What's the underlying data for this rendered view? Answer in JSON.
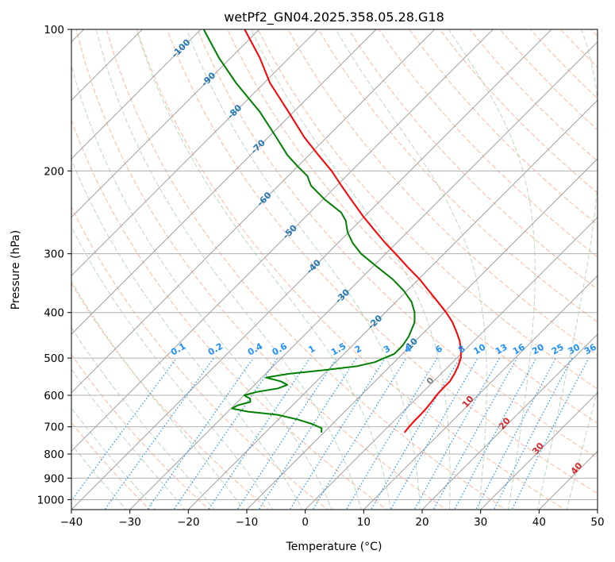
{
  "chart_data": {
    "type": "line",
    "diagram": "skew-T log-p",
    "title": "wetPf2_GN04.2025.358.05.28.G18",
    "xlabel": "Temperature (°C)",
    "ylabel": "Pressure (hPa)",
    "xlim": [
      -40,
      50
    ],
    "ylim": [
      1050,
      100
    ],
    "y_scale": "log",
    "grid": true,
    "x_ticks": [
      -40,
      -30,
      -20,
      -10,
      0,
      10,
      20,
      30,
      40,
      50
    ],
    "y_ticks": [
      100,
      200,
      300,
      400,
      500,
      600,
      700,
      800,
      900,
      1000
    ],
    "isotherm_labels": [
      "-100",
      "-90",
      "-80",
      "-70",
      "-60",
      "-50",
      "-40",
      "-30",
      "-20",
      "-10"
    ],
    "mixing_ratio_labels": [
      "0.1",
      "0.2",
      "0.4",
      "0.6",
      "1",
      "1.5",
      "2",
      "3",
      "4",
      "6",
      "8",
      "10",
      "13",
      "16",
      "20",
      "25",
      "30",
      "36"
    ],
    "wet_bulb_labels": [
      "0",
      "10",
      "20",
      "30",
      "40"
    ],
    "colors": {
      "temperature": "#ff0000",
      "dewpoint": "#008000",
      "isotherm_label": "#1f77b4",
      "mixing_ratio": "#1e90ff",
      "moist_adiabat_label": "#d62728",
      "dry_adiabat": "#ffa07a",
      "moist_adiabat": "#9acd9a",
      "grid": "#b0b0b0"
    },
    "series": [
      {
        "key": "temperature",
        "p": [
          720,
          700,
          680,
          660,
          640,
          620,
          600,
          580,
          560,
          540,
          520,
          500,
          480,
          460,
          440,
          420,
          400,
          380,
          360,
          340,
          320,
          300,
          285,
          270,
          250,
          230,
          215,
          200,
          185,
          170,
          150,
          130,
          115,
          100
        ],
        "t": [
          3.8,
          3.6,
          3.5,
          3.5,
          3.4,
          3.2,
          2.9,
          2.8,
          2.8,
          2.3,
          1.6,
          0.7,
          -0.7,
          -2.4,
          -4.5,
          -6.8,
          -9.6,
          -12.8,
          -16.2,
          -19.8,
          -24,
          -28.3,
          -31.8,
          -35.3,
          -40.2,
          -45.2,
          -49.2,
          -53.4,
          -58.4,
          -63.7,
          -70.8,
          -79,
          -85,
          -92.5
        ]
      },
      {
        "key": "dewpoint",
        "p": [
          720,
          705,
          690,
          675,
          660,
          650,
          640,
          630,
          620,
          610,
          600,
          590,
          580,
          570,
          560,
          550,
          540,
          530,
          520,
          510,
          500,
          490,
          470,
          450,
          420,
          400,
          380,
          360,
          340,
          320,
          300,
          285,
          270,
          255,
          245,
          230,
          215,
          205,
          195,
          185,
          170,
          150,
          130,
          115,
          100
        ],
        "t": [
          -10.4,
          -11.1,
          -13.5,
          -16.8,
          -21,
          -26.5,
          -29.8,
          -29.4,
          -27.8,
          -28.4,
          -30,
          -28.4,
          -25.4,
          -24.4,
          -26.2,
          -29.3,
          -26,
          -20.5,
          -15.6,
          -13.3,
          -12.4,
          -11.4,
          -11.4,
          -11.9,
          -13.3,
          -15,
          -17.3,
          -20.5,
          -24.4,
          -29.2,
          -34.2,
          -37.4,
          -40.2,
          -42.5,
          -44.7,
          -49.7,
          -54.4,
          -56.7,
          -60.2,
          -63.7,
          -68.5,
          -75.7,
          -84.8,
          -92,
          -99.5
        ]
      }
    ]
  }
}
